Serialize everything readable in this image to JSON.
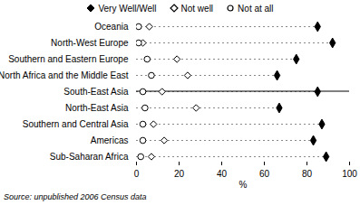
{
  "chart_data": {
    "type": "scatter",
    "orientation": "horizontal",
    "categories": [
      "Oceania",
      "North-West Europe",
      "Southern and Eastern Europe",
      "North Africa and the Middle East",
      "South-East Asia",
      "North-East Asia",
      "Southern and Central Asia",
      "Americas",
      "Sub-Saharan Africa"
    ],
    "series": [
      {
        "name": "Very Well/Well",
        "color": "#000000",
        "marker": "diamond",
        "values": [
          85,
          92,
          75,
          66,
          85,
          67,
          87,
          83,
          89
        ]
      },
      {
        "name": "Not well",
        "color": "#000000",
        "marker": "open-diamond",
        "values": [
          6,
          3,
          19,
          24,
          12,
          28,
          8,
          13,
          7
        ]
      },
      {
        "name": "Not at all",
        "color": "#000000",
        "marker": "open-circle",
        "values": [
          1,
          1,
          5,
          7,
          3,
          4,
          3,
          3,
          2
        ]
      }
    ],
    "xlabel": "%",
    "xlim": [
      0,
      100
    ],
    "xticks": [
      0,
      20,
      40,
      60,
      80,
      100
    ],
    "line_style": "dashed",
    "legend": "top",
    "caption": "Source: unpublished 2006 Census data"
  }
}
